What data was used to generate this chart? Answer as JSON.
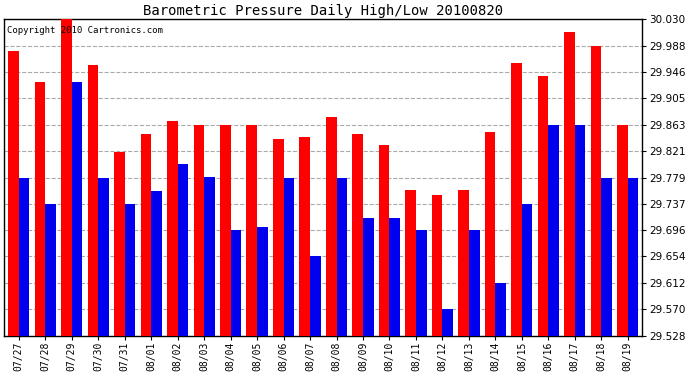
{
  "title": "Barometric Pressure Daily High/Low 20100820",
  "copyright": "Copyright 2010 Cartronics.com",
  "dates": [
    "07/27",
    "07/28",
    "07/29",
    "07/30",
    "07/31",
    "08/01",
    "08/02",
    "08/03",
    "08/04",
    "08/05",
    "08/06",
    "08/07",
    "08/08",
    "08/09",
    "08/10",
    "08/11",
    "08/12",
    "08/13",
    "08/14",
    "08/15",
    "08/16",
    "08/17",
    "08/18",
    "08/19"
  ],
  "highs": [
    29.98,
    29.93,
    30.03,
    29.958,
    29.82,
    29.848,
    29.868,
    29.863,
    29.863,
    29.863,
    29.84,
    29.843,
    29.875,
    29.848,
    29.83,
    29.76,
    29.752,
    29.76,
    29.852,
    29.96,
    29.94,
    30.01,
    29.988,
    29.863
  ],
  "lows": [
    29.779,
    29.737,
    29.93,
    29.779,
    29.737,
    29.758,
    29.8,
    29.78,
    29.696,
    29.7,
    29.779,
    29.654,
    29.779,
    29.715,
    29.715,
    29.696,
    29.57,
    29.696,
    29.612,
    29.737,
    29.863,
    29.863,
    29.779,
    29.779
  ],
  "high_color": "#FF0000",
  "low_color": "#0000EE",
  "bg_color": "#FFFFFF",
  "grid_color": "#AAAAAA",
  "ylim_min": 29.528,
  "ylim_max": 30.03,
  "yticks": [
    29.528,
    29.57,
    29.612,
    29.654,
    29.696,
    29.737,
    29.779,
    29.821,
    29.863,
    29.905,
    29.946,
    29.988,
    30.03
  ],
  "bar_width": 0.4,
  "figwidth": 6.9,
  "figheight": 3.75,
  "dpi": 100
}
